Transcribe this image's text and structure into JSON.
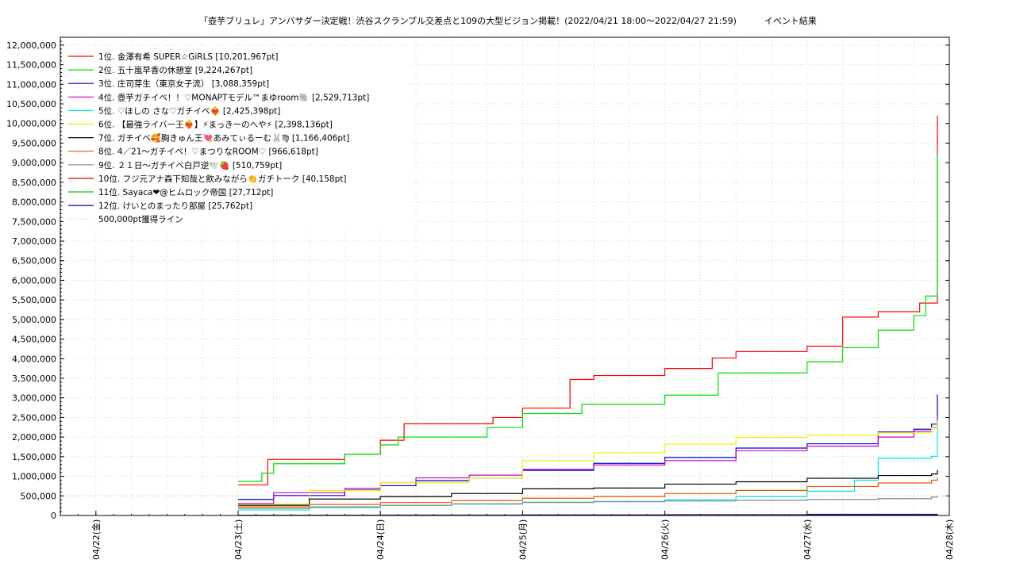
{
  "chart_data": {
    "type": "line",
    "title": "「壺芋ブリュレ」アンバサダー決定戦！渋谷スクランブル交差点と109の大型ビジョン掲載！(2022/04/21 18:00～2022/04/27 21:59)          イベント結果",
    "xlabel": "",
    "ylabel": "",
    "ylim": [
      0,
      12200000
    ],
    "yticks": [
      0,
      500000,
      1000000,
      1500000,
      2000000,
      2500000,
      3000000,
      3500000,
      4000000,
      4500000,
      5000000,
      5500000,
      6000000,
      6500000,
      7000000,
      7500000,
      8000000,
      8500000,
      9000000,
      9500000,
      10000000,
      10500000,
      11000000,
      11500000,
      12000000
    ],
    "ytick_labels": [
      "0",
      "500,000",
      "1,000,000",
      "1,500,000",
      "2,000,000",
      "2,500,000",
      "3,000,000",
      "3,500,000",
      "4,000,000",
      "4,500,000",
      "5,000,000",
      "5,500,000",
      "6,000,000",
      "6,500,000",
      "7,000,000",
      "7,500,000",
      "8,000,000",
      "8,500,000",
      "9,000,000",
      "9,500,000",
      "10,000,000",
      "10,500,000",
      "11,000,000",
      "11,500,000",
      "12,000,000"
    ],
    "xlim": [
      "04/21 18:00",
      "04/28 00:00"
    ],
    "xticks": [
      "04/22(金)",
      "04/23(土)",
      "04/24(日)",
      "04/25(月)",
      "04/26(火)",
      "04/27(水)",
      "04/28(木)"
    ],
    "grid": true,
    "legend_position": "top-left",
    "series": [
      {
        "name": "1位. 金澤有希 SUPER☆GiRLS [10,201,967pt]",
        "color": "#ff0000",
        "x": [
          "04/23 00:00",
          "04/23 04:00",
          "04/23 05:00",
          "04/23 18:00",
          "04/24 00:00",
          "04/24 04:00",
          "04/24 12:00",
          "04/24 19:00",
          "04/24 21:00",
          "04/25 00:00",
          "04/25 08:00",
          "04/25 12:00",
          "04/25 19:00",
          "04/26 00:00",
          "04/26 08:00",
          "04/26 12:00",
          "04/26 18:00",
          "04/27 00:00",
          "04/27 06:00",
          "04/27 12:00",
          "04/27 18:00",
          "04/27 19:00",
          "04/27 21:59"
        ],
        "y": [
          780000,
          780000,
          1430000,
          1560000,
          1920000,
          2340000,
          2340000,
          2500000,
          2500000,
          2740000,
          3470000,
          3570000,
          3570000,
          3750000,
          4020000,
          4180000,
          4180000,
          4320000,
          5060000,
          5200000,
          5200000,
          5420000,
          10201967
        ]
      },
      {
        "name": "2位. 五十嵐早香の休憩室 [9,224,267pt]",
        "color": "#00dd00",
        "x": [
          "04/23 00:00",
          "04/23 04:00",
          "04/23 06:00",
          "04/23 18:00",
          "04/24 00:00",
          "04/24 03:00",
          "04/24 12:00",
          "04/24 18:00",
          "04/25 00:00",
          "04/25 10:00",
          "04/25 19:00",
          "04/26 00:00",
          "04/26 09:00",
          "04/26 18:00",
          "04/27 00:00",
          "04/27 06:00",
          "04/27 12:00",
          "04/27 18:00",
          "04/27 20:00",
          "04/27 21:59"
        ],
        "y": [
          870000,
          1080000,
          1320000,
          1560000,
          1800000,
          2000000,
          2000000,
          2250000,
          2600000,
          2840000,
          2840000,
          3070000,
          3640000,
          3640000,
          3920000,
          4280000,
          4730000,
          5100000,
          5600000,
          9224267
        ]
      },
      {
        "name": "3位. 庄司芽生（東京女子流） [3,088,359pt]",
        "color": "#0000cc",
        "x": [
          "04/23 00:00",
          "04/23 06:00",
          "04/23 18:00",
          "04/24 00:00",
          "04/24 06:00",
          "04/24 15:00",
          "04/25 00:00",
          "04/25 12:00",
          "04/26 00:00",
          "04/26 12:00",
          "04/27 00:00",
          "04/27 12:00",
          "04/27 18:00",
          "04/27 21:00",
          "04/27 21:59"
        ],
        "y": [
          410000,
          510000,
          650000,
          760000,
          890000,
          960000,
          1150000,
          1330000,
          1480000,
          1720000,
          1830000,
          2130000,
          2200000,
          2330000,
          3088359
        ]
      },
      {
        "name": "4位. 壺芋ガチイベ！！♡MONAPTモデル™まゆroom🐘 [2,529,713pt]",
        "color": "#cc00cc",
        "x": [
          "04/23 00:00",
          "04/23 06:00",
          "04/23 18:00",
          "04/24 00:00",
          "04/24 06:00",
          "04/24 15:00",
          "04/25 00:00",
          "04/25 12:00",
          "04/26 00:00",
          "04/26 12:00",
          "04/27 00:00",
          "04/27 12:00",
          "04/27 18:00",
          "04/27 21:00",
          "04/27 21:59"
        ],
        "y": [
          310000,
          580000,
          690000,
          840000,
          960000,
          1030000,
          1180000,
          1290000,
          1400000,
          1650000,
          1770000,
          2000000,
          2150000,
          2250000,
          2529713
        ]
      },
      {
        "name": "5位. ♡ほしの さな♡ガチイベ❤️‍🔥 [2,425,398pt]",
        "color": "#00e5e5",
        "x": [
          "04/23 00:00",
          "04/23 12:00",
          "04/24 00:00",
          "04/24 12:00",
          "04/25 00:00",
          "04/25 12:00",
          "04/26 00:00",
          "04/26 12:00",
          "04/27 00:00",
          "04/27 08:00",
          "04/27 12:00",
          "04/27 21:00",
          "04/27 21:59"
        ],
        "y": [
          140000,
          200000,
          260000,
          290000,
          340000,
          360000,
          400000,
          480000,
          620000,
          900000,
          1460000,
          1510000,
          2425398
        ]
      },
      {
        "name": "6位. 【最強ライバー王❤️‍🔥】⚡まっきーのへや⚡ [2,398,136pt]",
        "color": "#f0f000",
        "x": [
          "04/23 00:00",
          "04/23 12:00",
          "04/24 00:00",
          "04/24 15:00",
          "04/25 00:00",
          "04/25 12:00",
          "04/26 00:00",
          "04/26 12:00",
          "04/27 00:00",
          "04/27 12:00",
          "04/27 21:00",
          "04/27 21:59"
        ],
        "y": [
          290000,
          640000,
          840000,
          960000,
          1400000,
          1600000,
          1820000,
          1990000,
          2050000,
          2110000,
          2240000,
          2398136
        ]
      },
      {
        "name": "7位. ガチイベ🥰胸きゅん王💘あみてぃるーむ🐰♍ [1,166,406pt]",
        "color": "#000000",
        "x": [
          "04/23 00:00",
          "04/23 12:00",
          "04/24 00:00",
          "04/24 12:00",
          "04/25 00:00",
          "04/25 12:00",
          "04/26 00:00",
          "04/26 12:00",
          "04/27 00:00",
          "04/27 12:00",
          "04/27 21:00",
          "04/27 21:59"
        ],
        "y": [
          260000,
          420000,
          480000,
          560000,
          680000,
          700000,
          800000,
          860000,
          950000,
          1020000,
          1060000,
          1166406
        ]
      },
      {
        "name": "8位. 4／21〜ガチイベ！♡まつりなROOM♡ [966,618pt]",
        "color": "#ee5500",
        "x": [
          "04/23 00:00",
          "04/23 12:00",
          "04/24 00:00",
          "04/24 12:00",
          "04/25 00:00",
          "04/25 12:00",
          "04/26 00:00",
          "04/26 12:00",
          "04/27 00:00",
          "04/27 12:00",
          "04/27 21:00",
          "04/27 21:59"
        ],
        "y": [
          220000,
          280000,
          330000,
          380000,
          440000,
          480000,
          560000,
          640000,
          740000,
          830000,
          900000,
          966618
        ]
      },
      {
        "name": "9位. ２１日〜ガチイベ白戸逆🕊️🍓 [510,759pt]",
        "color": "#888888",
        "x": [
          "04/23 00:00",
          "04/23 12:00",
          "04/24 00:00",
          "04/24 12:00",
          "04/25 00:00",
          "04/25 12:00",
          "04/26 00:00",
          "04/26 12:00",
          "04/27 00:00",
          "04/27 12:00",
          "04/27 21:00",
          "04/27 21:59"
        ],
        "y": [
          180000,
          220000,
          260000,
          300000,
          330000,
          350000,
          370000,
          390000,
          410000,
          430000,
          470000,
          510759
        ]
      },
      {
        "name": "10位. フジ元アナ森下知哉と飲みながら👏ガチトーク [40,158pt]",
        "color": "#cc0000",
        "x": [
          "04/23 00:00",
          "04/24 00:00",
          "04/25 00:00",
          "04/26 00:00",
          "04/27 00:00",
          "04/27 21:59"
        ],
        "y": [
          5000,
          10000,
          15000,
          20000,
          30000,
          40158
        ]
      },
      {
        "name": "11位. Sayaca❤@ヒムロック帝国 [27,712pt]",
        "color": "#00cc00",
        "x": [
          "04/23 00:00",
          "04/24 00:00",
          "04/25 00:00",
          "04/26 00:00",
          "04/27 00:00",
          "04/27 21:59"
        ],
        "y": [
          3000,
          6000,
          10000,
          15000,
          22000,
          27712
        ]
      },
      {
        "name": "12位. けいとのまったり部屋 [25,762pt]",
        "color": "#0000bb",
        "x": [
          "04/23 00:00",
          "04/24 00:00",
          "04/25 00:00",
          "04/26 00:00",
          "04/27 00:00",
          "04/27 21:59"
        ],
        "y": [
          2000,
          5000,
          8000,
          12000,
          20000,
          25762
        ]
      }
    ],
    "reference_line": {
      "name": "500,000pt獲得ライン",
      "value": 500000,
      "color": "#f0a0a0",
      "style": "dotted"
    }
  }
}
